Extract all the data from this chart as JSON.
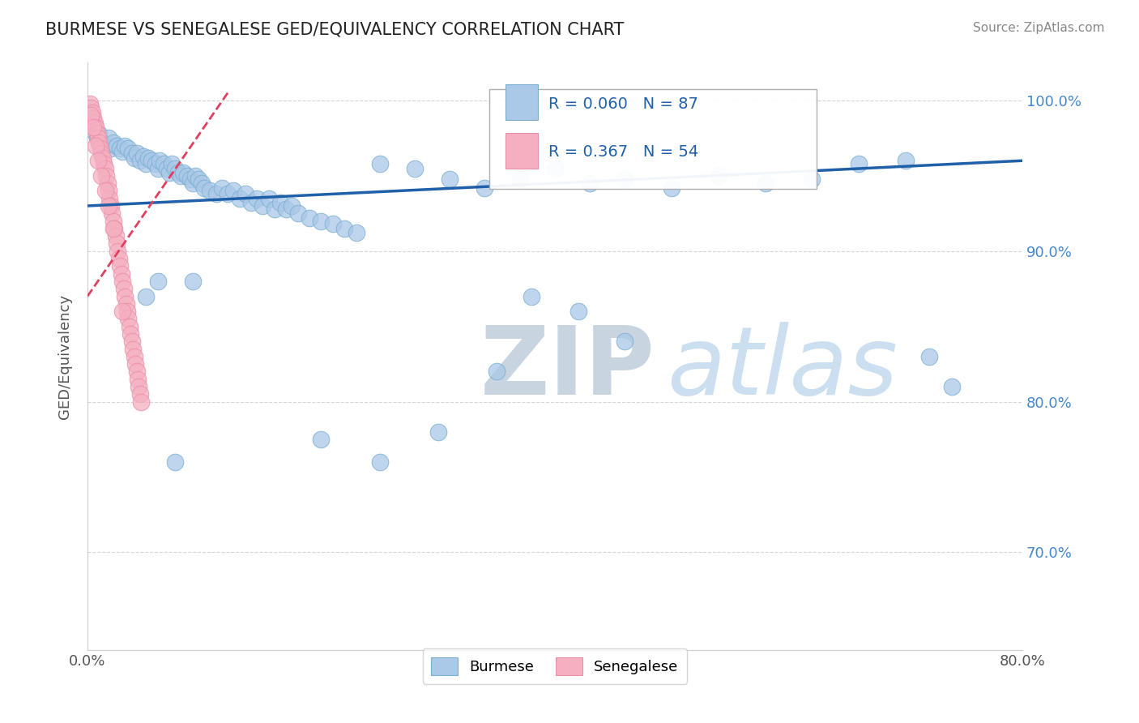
{
  "title": "BURMESE VS SENEGALESE GED/EQUIVALENCY CORRELATION CHART",
  "source_text": "Source: ZipAtlas.com",
  "ylabel": "GED/Equivalency",
  "xlim": [
    0.0,
    0.8
  ],
  "ylim": [
    0.635,
    1.025
  ],
  "xticks": [
    0.0,
    0.8
  ],
  "xtick_labels": [
    "0.0%",
    "80.0%"
  ],
  "yticks": [
    0.7,
    0.8,
    0.9,
    1.0
  ],
  "ytick_labels": [
    "70.0%",
    "80.0%",
    "90.0%",
    "100.0%"
  ],
  "legend_r_blue": "R = 0.060",
  "legend_n_blue": "N = 87",
  "legend_r_pink": "R = 0.367",
  "legend_n_pink": "N = 54",
  "burmese_color": "#aac8e8",
  "senegalese_color": "#f5afc0",
  "burmese_edge_color": "#7aafd0",
  "senegalese_edge_color": "#e890a8",
  "burmese_line_color": "#2060a8",
  "senegalese_line_color": "#e04060",
  "watermark_zip": "ZIP",
  "watermark_atlas": "atlas",
  "burmese_x": [
    0.005,
    0.008,
    0.01,
    0.012,
    0.015,
    0.018,
    0.02,
    0.022,
    0.025,
    0.028,
    0.03,
    0.032,
    0.035,
    0.038,
    0.04,
    0.042,
    0.045,
    0.048,
    0.05,
    0.052,
    0.055,
    0.058,
    0.06,
    0.062,
    0.065,
    0.068,
    0.07,
    0.072,
    0.075,
    0.078,
    0.08,
    0.082,
    0.085,
    0.088,
    0.09,
    0.092,
    0.095,
    0.098,
    0.1,
    0.105,
    0.11,
    0.115,
    0.12,
    0.125,
    0.13,
    0.135,
    0.14,
    0.145,
    0.15,
    0.155,
    0.16,
    0.165,
    0.17,
    0.175,
    0.18,
    0.19,
    0.2,
    0.21,
    0.22,
    0.23,
    0.25,
    0.28,
    0.31,
    0.34,
    0.37,
    0.4,
    0.43,
    0.46,
    0.5,
    0.54,
    0.58,
    0.62,
    0.66,
    0.7,
    0.72,
    0.74,
    0.38,
    0.42,
    0.46,
    0.2,
    0.25,
    0.3,
    0.35,
    0.05,
    0.06,
    0.075,
    0.09
  ],
  "burmese_y": [
    0.98,
    0.975,
    0.978,
    0.972,
    0.97,
    0.975,
    0.968,
    0.972,
    0.97,
    0.968,
    0.966,
    0.97,
    0.968,
    0.965,
    0.962,
    0.965,
    0.96,
    0.963,
    0.958,
    0.962,
    0.96,
    0.958,
    0.955,
    0.96,
    0.958,
    0.955,
    0.952,
    0.958,
    0.955,
    0.952,
    0.95,
    0.952,
    0.95,
    0.948,
    0.945,
    0.95,
    0.948,
    0.945,
    0.942,
    0.94,
    0.938,
    0.942,
    0.938,
    0.94,
    0.935,
    0.938,
    0.932,
    0.935,
    0.93,
    0.935,
    0.928,
    0.932,
    0.928,
    0.93,
    0.925,
    0.922,
    0.92,
    0.918,
    0.915,
    0.912,
    0.958,
    0.955,
    0.948,
    0.942,
    0.948,
    0.955,
    0.945,
    0.948,
    0.942,
    0.95,
    0.945,
    0.948,
    0.958,
    0.96,
    0.83,
    0.81,
    0.87,
    0.86,
    0.84,
    0.775,
    0.76,
    0.78,
    0.82,
    0.87,
    0.88,
    0.76,
    0.88
  ],
  "senegalese_x": [
    0.002,
    0.003,
    0.004,
    0.005,
    0.006,
    0.007,
    0.008,
    0.009,
    0.01,
    0.011,
    0.012,
    0.013,
    0.014,
    0.015,
    0.016,
    0.017,
    0.018,
    0.019,
    0.02,
    0.021,
    0.022,
    0.023,
    0.024,
    0.025,
    0.026,
    0.027,
    0.028,
    0.029,
    0.03,
    0.031,
    0.032,
    0.033,
    0.034,
    0.035,
    0.036,
    0.037,
    0.038,
    0.039,
    0.04,
    0.041,
    0.042,
    0.043,
    0.044,
    0.045,
    0.046,
    0.003,
    0.005,
    0.007,
    0.009,
    0.012,
    0.015,
    0.018,
    0.022,
    0.03
  ],
  "senegalese_y": [
    0.998,
    0.995,
    0.992,
    0.988,
    0.985,
    0.982,
    0.978,
    0.975,
    0.972,
    0.968,
    0.965,
    0.962,
    0.958,
    0.955,
    0.95,
    0.945,
    0.94,
    0.935,
    0.93,
    0.925,
    0.92,
    0.915,
    0.91,
    0.905,
    0.9,
    0.895,
    0.89,
    0.885,
    0.88,
    0.875,
    0.87,
    0.865,
    0.86,
    0.855,
    0.85,
    0.845,
    0.84,
    0.835,
    0.83,
    0.825,
    0.82,
    0.815,
    0.81,
    0.805,
    0.8,
    0.99,
    0.982,
    0.97,
    0.96,
    0.95,
    0.94,
    0.93,
    0.915,
    0.86
  ],
  "burmese_trend_x": [
    0.0,
    0.8
  ],
  "burmese_trend_y": [
    0.93,
    0.96
  ],
  "senegalese_trend_x": [
    0.0,
    0.12
  ],
  "senegalese_trend_y": [
    0.87,
    1.005
  ]
}
